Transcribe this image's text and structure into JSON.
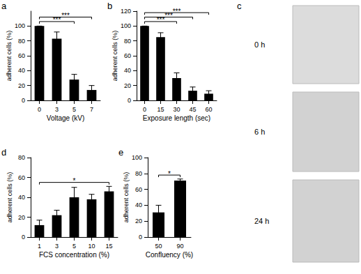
{
  "chart_data": [
    {
      "label": "a",
      "type": "bar",
      "x_label": "Voltage (kV)",
      "y_label": "adherent cells (%)",
      "categories": [
        "0",
        "3",
        "5",
        "7"
      ],
      "values": [
        100,
        83,
        28,
        14
      ],
      "errors": [
        0,
        9,
        7,
        6
      ],
      "color": "#000000",
      "ylim": [
        0,
        120
      ],
      "yticks": [
        0,
        20,
        40,
        60,
        80,
        100
      ],
      "grid": false,
      "significance": [
        {
          "from": "0",
          "to": "5",
          "label": "***"
        },
        {
          "from": "0",
          "to": "7",
          "label": "***"
        }
      ]
    },
    {
      "label": "b",
      "type": "bar",
      "x_label": "Exposure length (sec)",
      "y_label": "adherent cells (%)",
      "categories": [
        "0",
        "15",
        "30",
        "45",
        "60"
      ],
      "values": [
        100,
        85,
        30,
        13,
        9
      ],
      "errors": [
        0,
        6,
        7,
        5,
        4
      ],
      "color": "#000000",
      "ylim": [
        0,
        120
      ],
      "yticks": [
        0,
        20,
        40,
        60,
        80,
        100,
        120
      ],
      "grid": false,
      "significance": [
        {
          "from": "0",
          "to": "30",
          "label": "***"
        },
        {
          "from": "0",
          "to": "45",
          "label": "***"
        },
        {
          "from": "0",
          "to": "60",
          "label": "***"
        }
      ]
    },
    {
      "label": "d",
      "type": "bar",
      "x_label": "FCS concentration (%)",
      "y_label": "adherent cells (%)",
      "categories": [
        "1",
        "3",
        "5",
        "10",
        "15"
      ],
      "values": [
        12,
        22,
        40,
        38,
        46
      ],
      "errors": [
        5,
        5,
        10,
        5,
        5
      ],
      "color": "#000000",
      "ylim": [
        0,
        80
      ],
      "yticks": [
        0,
        20,
        40,
        60,
        80
      ],
      "grid": false,
      "significance": [
        {
          "from": "1",
          "to": "15",
          "label": "*"
        }
      ]
    },
    {
      "label": "e",
      "type": "bar",
      "x_label": "Confluency (%)",
      "y_label": "adherent cells (%)",
      "categories": [
        "50",
        "90"
      ],
      "values": [
        31,
        71
      ],
      "errors": [
        9,
        2
      ],
      "color": "#000000",
      "ylim": [
        0,
        100
      ],
      "yticks": [
        0,
        20,
        40,
        60,
        80,
        100
      ],
      "grid": false,
      "significance": [
        {
          "from": "50",
          "to": "90",
          "label": "*"
        }
      ]
    }
  ],
  "panel_c": {
    "label": "c",
    "images": [
      "0 h",
      "6 h",
      "24 h"
    ]
  }
}
